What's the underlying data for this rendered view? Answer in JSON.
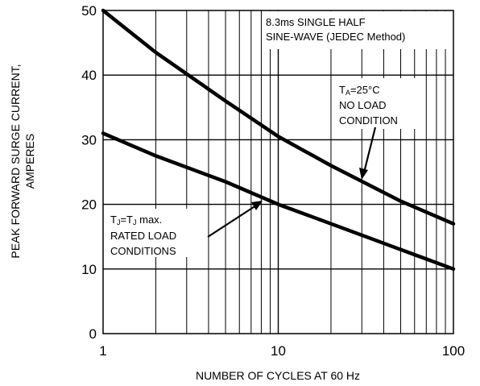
{
  "chart_data": {
    "type": "line",
    "xscale": "log",
    "xlim": [
      1,
      100
    ],
    "ylim": [
      0,
      50
    ],
    "grid": true,
    "xlabel": "NUMBER OF CYCLES AT 60 Hz",
    "ylabel_lines": [
      "PEAK FORWARD SURGE CURRENT,",
      "AMPERES"
    ],
    "x_ticks": [
      1,
      10,
      100
    ],
    "y_ticks": [
      0,
      10,
      20,
      30,
      40,
      50
    ],
    "series": [
      {
        "label_lines": [
          "TA=25°C",
          "NO LOAD",
          "CONDITION"
        ],
        "x": [
          1,
          2,
          5,
          10,
          20,
          50,
          100
        ],
        "y": [
          50,
          43.5,
          36,
          30.5,
          26,
          20.5,
          17
        ]
      },
      {
        "label_lines": [
          "TJ=TJ max.",
          "RATED LOAD",
          "CONDITIONS"
        ],
        "x": [
          1,
          2,
          5,
          10,
          20,
          50,
          100
        ],
        "y": [
          31,
          27.5,
          23.5,
          20,
          17,
          13,
          10
        ]
      }
    ],
    "annotation": [
      "8.3ms SINGLE HALF",
      "SINE-WAVE (JEDEC Method)"
    ]
  }
}
